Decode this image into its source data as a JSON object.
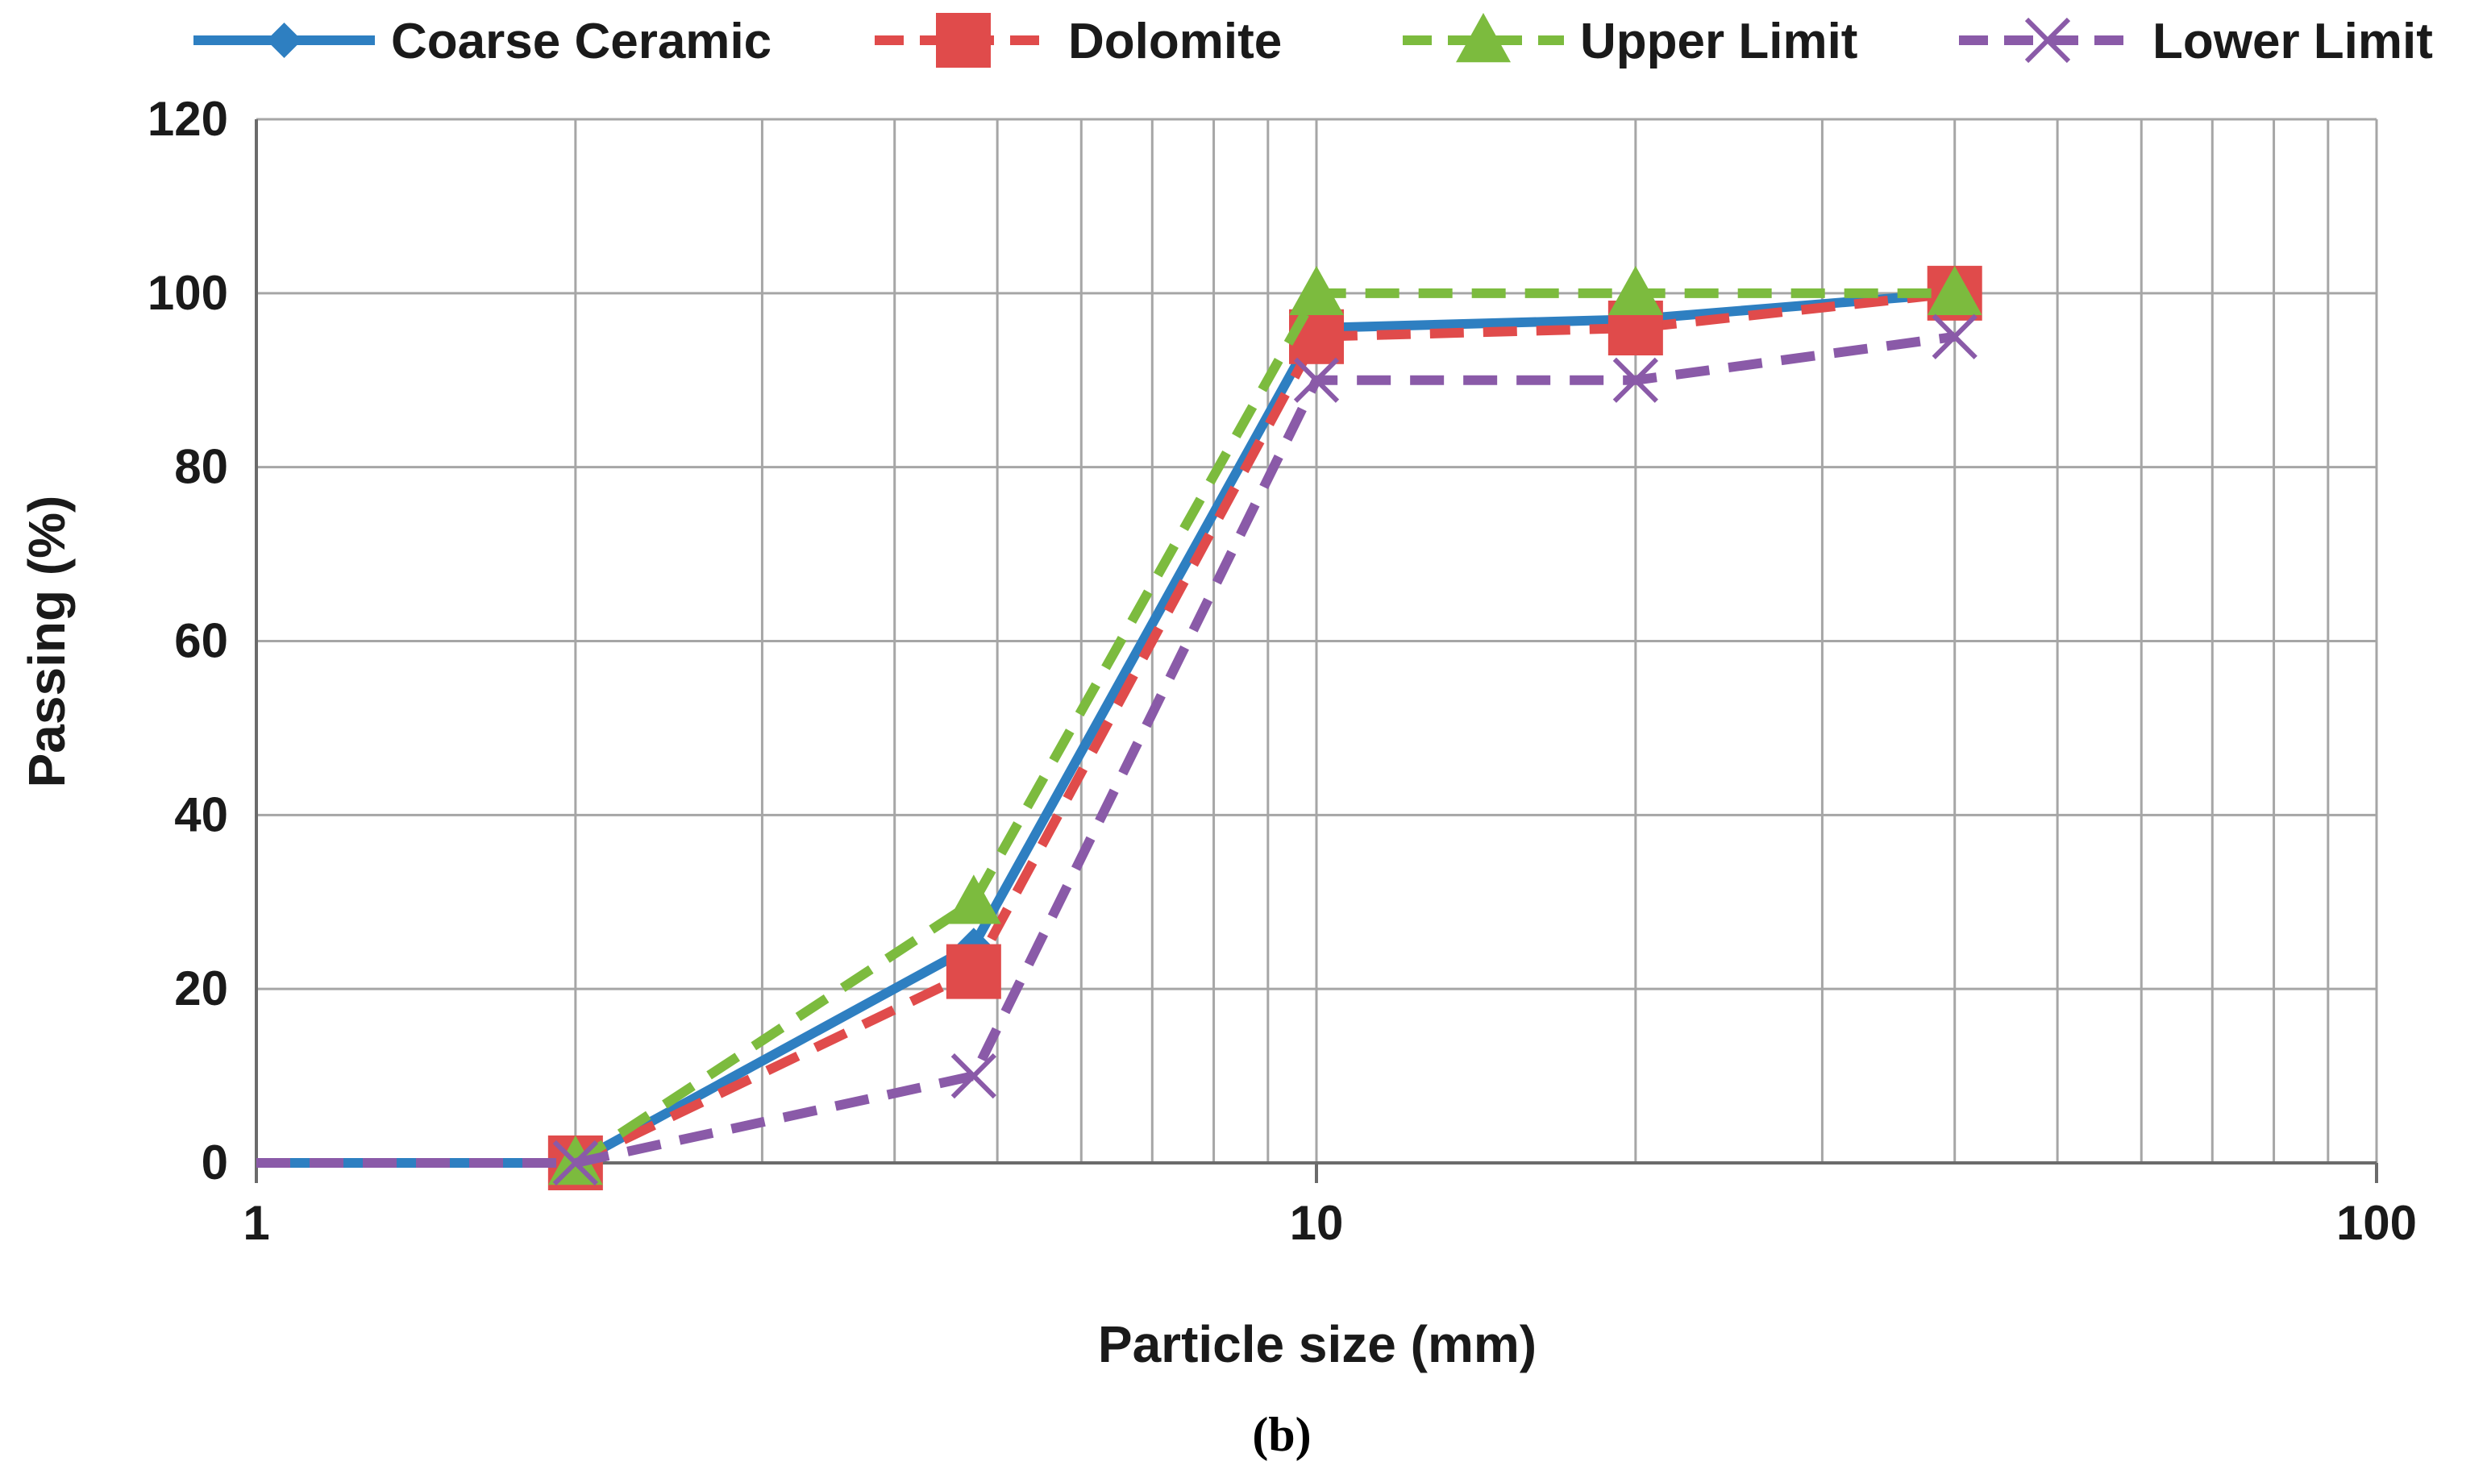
{
  "chart_data": {
    "type": "line",
    "xlabel": "Particle size (mm)",
    "ylabel": "Passing (%)",
    "x_scale": "log",
    "xlim": [
      1,
      100
    ],
    "ylim": [
      0,
      120
    ],
    "x_ticks": [
      1,
      10,
      100
    ],
    "y_ticks": [
      0,
      20,
      40,
      60,
      80,
      100,
      120
    ],
    "grid": true,
    "legend_position": "top",
    "caption": "(b)",
    "series": [
      {
        "name": "Coarse Ceramic",
        "color": "#2e7fc1",
        "marker": "diamond",
        "dash": "solid",
        "x": [
          1,
          2,
          4.75,
          10,
          20,
          40
        ],
        "y": [
          0,
          0,
          25,
          96,
          97,
          100
        ]
      },
      {
        "name": "Dolomite",
        "color": "#e04b4b",
        "marker": "square",
        "dash": "dashed",
        "x": [
          1,
          2,
          4.75,
          10,
          20,
          40
        ],
        "y": [
          0,
          0,
          22,
          95,
          96,
          100
        ]
      },
      {
        "name": "Upper Limit",
        "color": "#7cbb3e",
        "marker": "triangle",
        "dash": "dashed",
        "x": [
          1,
          2,
          4.75,
          10,
          20,
          40
        ],
        "y": [
          0,
          0,
          30,
          100,
          100,
          100
        ]
      },
      {
        "name": "Lower Limit",
        "color": "#8a5aa8",
        "marker": "x",
        "dash": "dashed",
        "x": [
          1,
          2,
          4.75,
          10,
          20,
          40
        ],
        "y": [
          0,
          0,
          10,
          90,
          90,
          95
        ]
      }
    ]
  }
}
